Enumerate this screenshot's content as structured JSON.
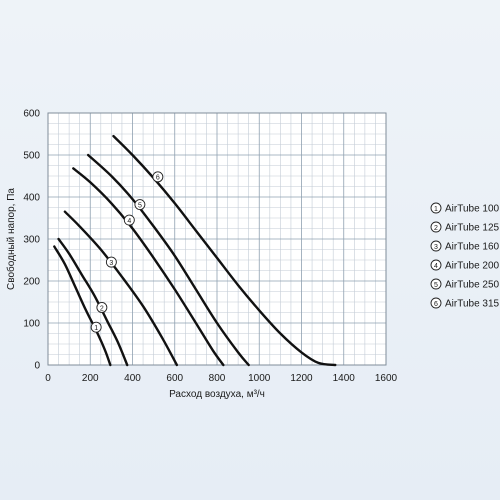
{
  "chart_data": {
    "type": "line",
    "xlabel": "Расход воздуха, м³/ч",
    "ylabel": "Свободный напор, Па",
    "xlim": [
      0,
      1600
    ],
    "ylim": [
      0,
      600
    ],
    "x_ticks": [
      "0",
      "200",
      "400",
      "600",
      "800",
      "1000",
      "1200",
      "1400",
      "1600"
    ],
    "y_ticks": [
      "0",
      "100",
      "200",
      "300",
      "400",
      "500",
      "600"
    ],
    "grid": true,
    "legend_position": "right",
    "line_color": "#111111",
    "series": [
      {
        "name": "AirTube 100",
        "marker": "1",
        "marker_x": 228,
        "marker_y": 90,
        "points": [
          [
            30,
            282
          ],
          [
            80,
            240
          ],
          [
            130,
            185
          ],
          [
            180,
            130
          ],
          [
            230,
            80
          ],
          [
            270,
            35
          ],
          [
            295,
            0
          ]
        ]
      },
      {
        "name": "AirTube 125",
        "marker": "2",
        "marker_x": 255,
        "marker_y": 137,
        "points": [
          [
            50,
            300
          ],
          [
            100,
            265
          ],
          [
            160,
            215
          ],
          [
            220,
            165
          ],
          [
            280,
            105
          ],
          [
            330,
            55
          ],
          [
            375,
            0
          ]
        ]
      },
      {
        "name": "AirTube 160",
        "marker": "3",
        "marker_x": 300,
        "marker_y": 245,
        "points": [
          [
            80,
            365
          ],
          [
            150,
            330
          ],
          [
            250,
            275
          ],
          [
            350,
            210
          ],
          [
            450,
            140
          ],
          [
            540,
            65
          ],
          [
            610,
            0
          ]
        ]
      },
      {
        "name": "AirTube 200",
        "marker": "4",
        "marker_x": 385,
        "marker_y": 345,
        "points": [
          [
            120,
            468
          ],
          [
            200,
            435
          ],
          [
            300,
            385
          ],
          [
            400,
            325
          ],
          [
            500,
            255
          ],
          [
            600,
            180
          ],
          [
            700,
            100
          ],
          [
            780,
            35
          ],
          [
            830,
            0
          ]
        ]
      },
      {
        "name": "AirTube 250",
        "marker": "5",
        "marker_x": 435,
        "marker_y": 382,
        "points": [
          [
            190,
            500
          ],
          [
            300,
            450
          ],
          [
            400,
            395
          ],
          [
            500,
            330
          ],
          [
            600,
            260
          ],
          [
            700,
            180
          ],
          [
            800,
            100
          ],
          [
            900,
            30
          ],
          [
            950,
            0
          ]
        ]
      },
      {
        "name": "AirTube 315",
        "marker": "6",
        "marker_x": 520,
        "marker_y": 448,
        "points": [
          [
            310,
            545
          ],
          [
            400,
            500
          ],
          [
            500,
            445
          ],
          [
            600,
            385
          ],
          [
            700,
            320
          ],
          [
            800,
            255
          ],
          [
            900,
            190
          ],
          [
            1000,
            130
          ],
          [
            1100,
            75
          ],
          [
            1200,
            30
          ],
          [
            1280,
            5
          ],
          [
            1360,
            0
          ]
        ]
      }
    ]
  }
}
